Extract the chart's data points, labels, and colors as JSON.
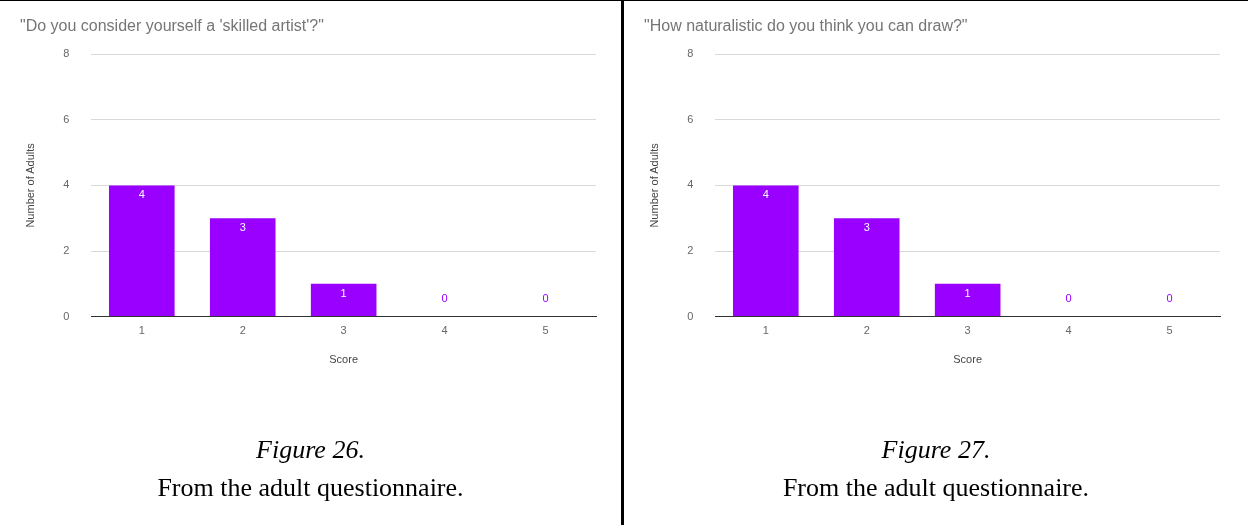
{
  "chart_data": [
    {
      "type": "bar",
      "title": "\"Do you consider yourself a 'skilled artist'?\"",
      "xlabel": "Score",
      "ylabel": "Number of Adults",
      "categories": [
        "1",
        "2",
        "3",
        "4",
        "5"
      ],
      "values": [
        4,
        3,
        1,
        0,
        0
      ],
      "color": "#9900ff",
      "ylim": [
        0,
        8
      ],
      "yticks": [
        0,
        2,
        4,
        6,
        8
      ],
      "grid": "y",
      "data_labels": true,
      "annotations": [
        "Figure 26.",
        "From the adult questionnaire."
      ]
    },
    {
      "type": "bar",
      "title": "\"How naturalistic do you think you can draw?\"",
      "xlabel": "Score",
      "ylabel": "Number of Adults",
      "categories": [
        "1",
        "2",
        "3",
        "4",
        "5"
      ],
      "values": [
        4,
        3,
        1,
        0,
        0
      ],
      "color": "#9900ff",
      "ylim": [
        0,
        8
      ],
      "yticks": [
        0,
        2,
        4,
        6,
        8
      ],
      "grid": "y",
      "data_labels": true,
      "annotations": [
        "Figure 27.",
        "From the adult questionnaire."
      ]
    }
  ]
}
